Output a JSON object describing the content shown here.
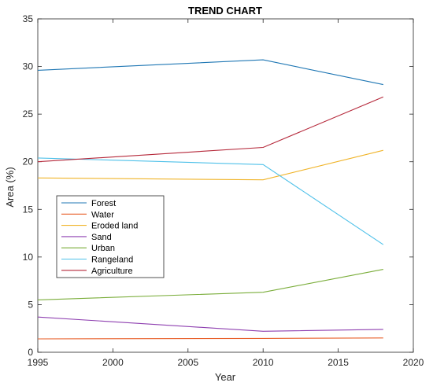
{
  "chart_data": {
    "type": "line",
    "title": "TREND CHART",
    "xlabel": "Year",
    "ylabel": "Area (%)",
    "xlim": [
      1995,
      2020
    ],
    "ylim": [
      0,
      35
    ],
    "xticks": [
      1995,
      2000,
      2005,
      2010,
      2015,
      2020
    ],
    "yticks": [
      0,
      5,
      10,
      15,
      20,
      25,
      30,
      35
    ],
    "grid": false,
    "legend_position": "left-middle",
    "x": [
      1995,
      2010,
      2018
    ],
    "series": [
      {
        "name": "Forest",
        "color": "#1f77b4",
        "values": [
          29.6,
          30.7,
          28.1
        ]
      },
      {
        "name": "Water",
        "color": "#e8612c",
        "values": [
          1.4,
          1.45,
          1.5
        ]
      },
      {
        "name": "Eroded land",
        "color": "#f0b429",
        "values": [
          18.3,
          18.1,
          21.2
        ]
      },
      {
        "name": "Sand",
        "color": "#8e3fb0",
        "values": [
          3.7,
          2.2,
          2.4
        ]
      },
      {
        "name": "Urban",
        "color": "#7aad3a",
        "values": [
          5.5,
          6.3,
          8.7
        ]
      },
      {
        "name": "Rangeland",
        "color": "#4fc1e9",
        "values": [
          20.4,
          19.7,
          11.3
        ]
      },
      {
        "name": "Agriculture",
        "color": "#b5283a",
        "values": [
          20.0,
          21.5,
          26.8
        ]
      }
    ]
  }
}
